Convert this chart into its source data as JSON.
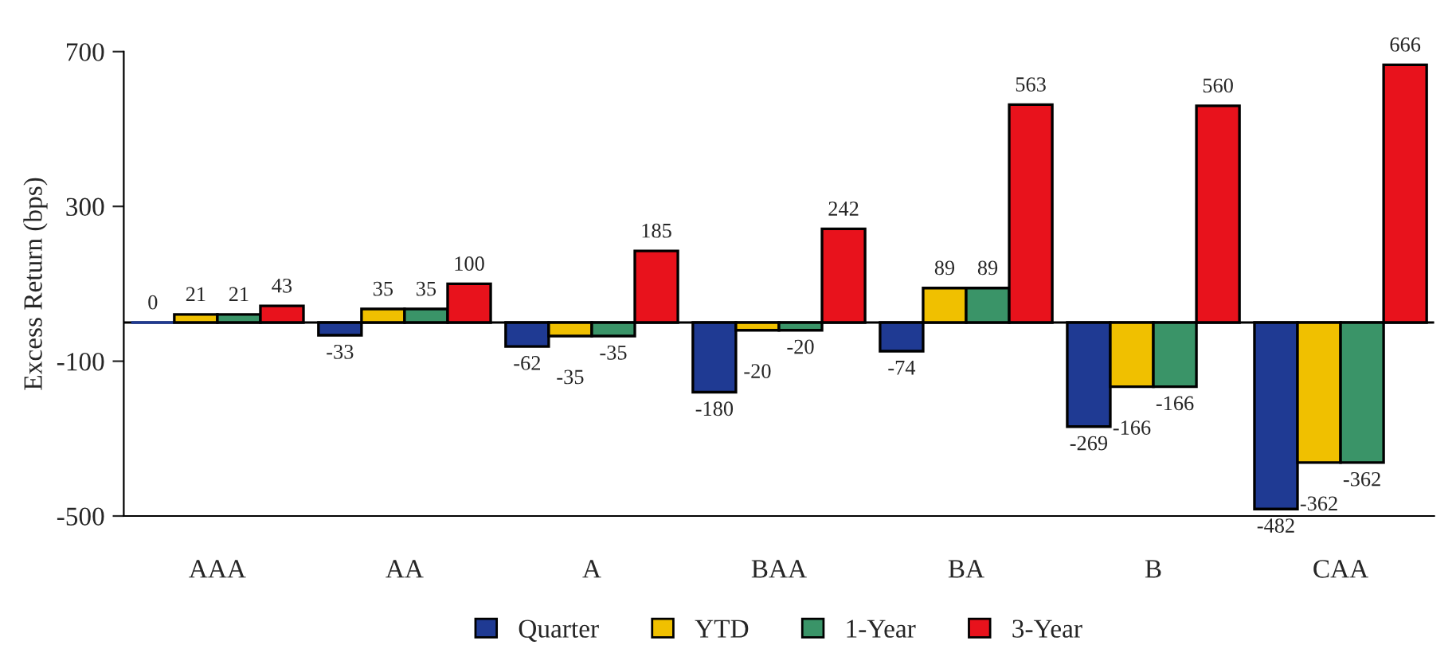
{
  "chart_data": {
    "type": "bar",
    "ylabel": "Excess Return (bps)",
    "categories": [
      "AAA",
      "AA",
      "A",
      "BAA",
      "BA",
      "B",
      "CAA"
    ],
    "series": [
      {
        "name": "Quarter",
        "color": "#1f3a93",
        "values": [
          0,
          -33,
          -62,
          -180,
          -74,
          -269,
          -482
        ]
      },
      {
        "name": "YTD",
        "color": "#f0c000",
        "values": [
          21,
          35,
          -35,
          -20,
          89,
          -166,
          -362
        ]
      },
      {
        "name": "1-Year",
        "color": "#3a9468",
        "values": [
          21,
          35,
          -35,
          -20,
          89,
          -166,
          -362
        ]
      },
      {
        "name": "3-Year",
        "color": "#e8121c",
        "values": [
          43,
          100,
          185,
          242,
          563,
          560,
          666
        ]
      }
    ],
    "ylim": [
      -500,
      700
    ],
    "yticks": [
      -500,
      -100,
      300,
      700
    ],
    "ref_lines": [
      {
        "axis": "y",
        "value": 0,
        "color": "#000000"
      }
    ],
    "data_labels": true,
    "grid": false,
    "legend": "bottom"
  }
}
